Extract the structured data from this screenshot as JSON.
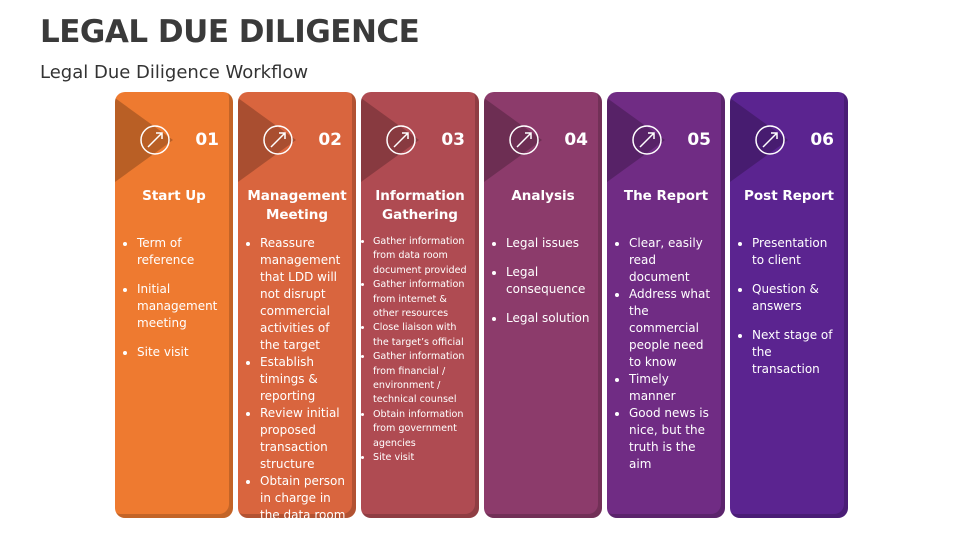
{
  "header": {
    "title": "LEGAL DUE DILIGENCE",
    "subtitle": "Legal Due Diligence Workflow"
  },
  "steps": [
    {
      "number": "01",
      "title": "Start Up",
      "color": "#ee7a30",
      "items": [
        "Term of reference",
        "Initial management meeting",
        "Site visit"
      ]
    },
    {
      "number": "02",
      "title": "Management Meeting",
      "color": "#d9653e",
      "items": [
        "Reassure management that LDD will not disrupt commercial activities of the target",
        "Establish timings & reporting",
        "Review initial proposed transaction structure",
        "Obtain person in charge in the data room"
      ]
    },
    {
      "number": "03",
      "title": "Information Gathering",
      "color": "#af4b52",
      "items": [
        "Gather information from data room document provided",
        "Gather information from internet & other resources",
        "Close liaison with the target’s official",
        "Gather information from financial / environment / technical counsel",
        "Obtain information from government agencies",
        "Site visit"
      ]
    },
    {
      "number": "04",
      "title": "Analysis",
      "color": "#8c3b6b",
      "items": [
        "Legal issues",
        "Legal consequence",
        "Legal solution"
      ]
    },
    {
      "number": "05",
      "title": "The Report",
      "color": "#702c84",
      "items": [
        "Clear, easily read document",
        "Address what the commercial people need to know",
        "Timely manner",
        "Good news is nice, but the truth is the aim"
      ]
    },
    {
      "number": "06",
      "title": "Post Report",
      "color": "#5b2490",
      "items": [
        "Presentation to client",
        "Question & answers",
        "Next stage of the transaction"
      ]
    }
  ]
}
